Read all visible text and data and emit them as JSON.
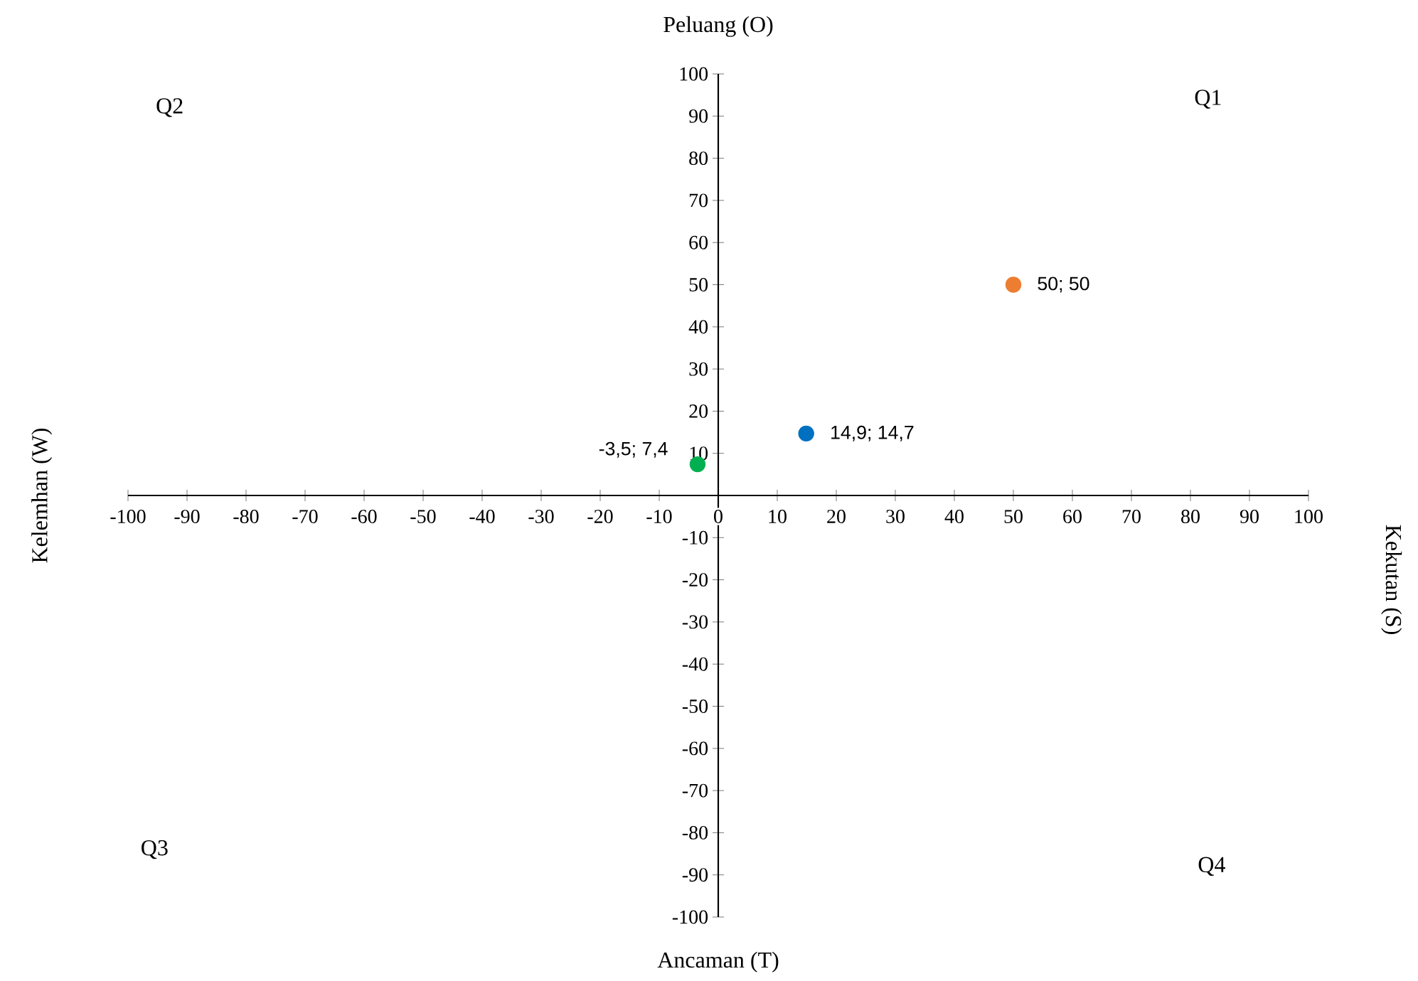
{
  "chart_data": {
    "type": "scatter",
    "xlim": [
      -100,
      100
    ],
    "ylim": [
      -100,
      100
    ],
    "xticks": [
      -100,
      -90,
      -80,
      -70,
      -60,
      -50,
      -40,
      -30,
      -20,
      -10,
      0,
      10,
      20,
      30,
      40,
      50,
      60,
      70,
      80,
      90,
      100
    ],
    "yticks": [
      -100,
      -90,
      -80,
      -70,
      -60,
      -50,
      -40,
      -30,
      -20,
      -10,
      {
        "value": 0,
        "label": null
      },
      10,
      20,
      30,
      40,
      50,
      60,
      70,
      80,
      90,
      100
    ],
    "x": [
      14.9,
      -3.5,
      50
    ],
    "values": [
      14.7,
      7.4,
      50
    ],
    "colors": [
      "#0070c0",
      "#00b050",
      "#ed7d31"
    ],
    "value_labels": [
      "14,9; 14,7",
      "-3,5; 7,4",
      "50; 50"
    ],
    "marker": "circle",
    "grid": false,
    "annotations": [
      "Peluang (O)",
      "Ancaman (T)",
      "Kelemhan (W)",
      "Kekutan (S)",
      "Q1",
      "Q2",
      "Q3",
      "Q4"
    ]
  }
}
